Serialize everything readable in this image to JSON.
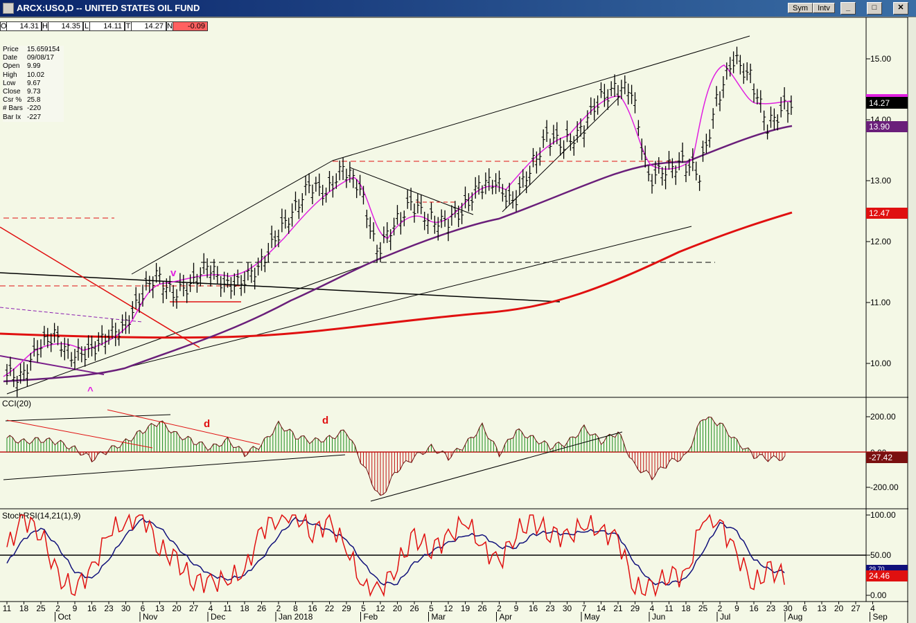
{
  "window": {
    "title": "ARCX:USO,D -- UNITED STATES OIL FUND",
    "sym_button": "Sym",
    "intv_button": "Intv",
    "minimize": "_",
    "restore": "□",
    "close": "✕"
  },
  "ohlc_bar": {
    "open_label": "O",
    "open": "14.31",
    "high_label": "H",
    "high": "14.35",
    "low_label": "L",
    "low": "14.11",
    "close_label": "T",
    "close": "14.27",
    "change_label": "N",
    "change": "-0.09"
  },
  "info_panel": {
    "rows": [
      {
        "key": "Price",
        "value": "15.659154"
      },
      {
        "key": "Date",
        "value": "09/08/17"
      },
      {
        "key": "Open",
        "value": "9.99"
      },
      {
        "key": "High",
        "value": "10.02"
      },
      {
        "key": "Low",
        "value": "9.67"
      },
      {
        "key": "Close",
        "value": "9.73"
      },
      {
        "key": "Csr %",
        "value": "25.8"
      },
      {
        "key": "# Bars",
        "value": "-220"
      },
      {
        "key": "Bar Ix",
        "value": "-227"
      }
    ]
  },
  "colors": {
    "price_bars": "#000000",
    "ma_short": "#e020e0",
    "ma_mid": "#6a1f7a",
    "ma_long": "#e01010",
    "cci_positive": "#1a8a1a",
    "cci_negative": "#c01010",
    "stoch_fast": "#e01010",
    "stoch_slow": "#10107a",
    "background": "#f4f8e6"
  },
  "chart_data": [
    {
      "type": "bar",
      "panel": "price",
      "ohlc": "daily OHLC bars",
      "y_ticks": [
        "15.00",
        "14.00",
        "13.00",
        "12.00",
        "11.00",
        "10.00"
      ],
      "ylim": [
        9.6,
        15.35
      ],
      "dates": [
        "2017-09-11",
        "2017-09-18",
        "2017-09-25",
        "2017-10-02",
        "2017-10-09",
        "2017-10-16",
        "2017-10-23",
        "2017-10-30",
        "2017-11-06",
        "2017-11-13",
        "2017-11-20",
        "2017-11-27",
        "2017-12-04",
        "2017-12-11",
        "2017-12-18",
        "2017-12-26",
        "2018-01-02",
        "2018-01-08",
        "2018-01-16",
        "2018-01-22",
        "2018-01-29",
        "2018-02-05",
        "2018-02-12",
        "2018-02-20",
        "2018-02-26",
        "2018-03-05",
        "2018-03-12",
        "2018-03-19",
        "2018-03-26",
        "2018-04-02",
        "2018-04-09",
        "2018-04-16",
        "2018-04-23",
        "2018-04-30",
        "2018-05-07",
        "2018-05-14",
        "2018-05-21",
        "2018-05-29",
        "2018-06-04",
        "2018-06-11",
        "2018-06-18",
        "2018-06-25",
        "2018-07-02",
        "2018-07-09",
        "2018-07-16",
        "2018-07-23",
        "2018-07-30"
      ],
      "weekly_close": [
        9.8,
        10.2,
        10.5,
        10.1,
        10.2,
        10.4,
        10.6,
        11.0,
        11.5,
        11.1,
        11.3,
        11.6,
        11.3,
        11.3,
        11.6,
        12.0,
        12.5,
        12.9,
        12.8,
        13.2,
        12.9,
        11.8,
        12.3,
        12.6,
        12.4,
        12.3,
        12.5,
        12.9,
        13.0,
        12.6,
        13.2,
        13.7,
        13.6,
        13.8,
        14.3,
        14.5,
        14.5,
        13.0,
        13.2,
        13.3,
        13.1,
        14.3,
        15.0,
        14.7,
        13.9,
        14.2,
        14.27
      ],
      "last_price": "14.27",
      "price_labels": [
        {
          "text": "14.27",
          "color": "#000000"
        },
        {
          "text": "13.90",
          "color": "#6a1f7a"
        },
        {
          "text": "12.47",
          "color": "#e01010"
        }
      ],
      "annotations": [
        "v",
        "^"
      ],
      "title": ""
    },
    {
      "type": "bar",
      "panel": "cci",
      "title": "CCI(20)",
      "y_ticks": [
        "200.00",
        "0.00",
        "-200.00"
      ],
      "ylim": [
        -300,
        300
      ],
      "series": [
        {
          "values": [
            80,
            60,
            70,
            55,
            20,
            -40,
            10,
            60,
            120,
            170,
            100,
            60,
            20,
            70,
            -10,
            40,
            160,
            90,
            60,
            80,
            120,
            -80,
            -260,
            -100,
            -30,
            30,
            -30,
            40,
            150,
            -10,
            120,
            80,
            30,
            50,
            140,
            60,
            110,
            -80,
            -140,
            -60,
            -20,
            200,
            160,
            60,
            -20,
            -40,
            -27.42
          ]
        }
      ],
      "last_value": "-27.42",
      "annotations": [
        "d",
        "d"
      ]
    },
    {
      "type": "line",
      "panel": "stochrsi",
      "title": "StochRSI(14,21(1),9)",
      "y_ticks": [
        "100.00",
        "50.00",
        "0.00"
      ],
      "ylim": [
        -5,
        105
      ],
      "series": [
        {
          "values": [
            60,
            95,
            80,
            20,
            10,
            30,
            80,
            90,
            100,
            60,
            40,
            20,
            15,
            20,
            30,
            80,
            100,
            100,
            80,
            90,
            60,
            10,
            5,
            40,
            70,
            60,
            70,
            95,
            60,
            40,
            80,
            90,
            80,
            70,
            90,
            80,
            70,
            10,
            5,
            30,
            20,
            100,
            90,
            50,
            15,
            30,
            24.46
          ]
        },
        {
          "values": [
            40,
            70,
            85,
            60,
            30,
            20,
            45,
            75,
            95,
            85,
            60,
            40,
            25,
            20,
            25,
            45,
            75,
            95,
            90,
            80,
            70,
            40,
            15,
            15,
            40,
            55,
            65,
            75,
            75,
            60,
            60,
            75,
            80,
            75,
            80,
            80,
            75,
            40,
            15,
            15,
            20,
            55,
            90,
            80,
            45,
            30,
            29.7
          ]
        }
      ],
      "last_value": "24.46",
      "last_value_2": "29.70",
      "reference_line": "50.00"
    }
  ],
  "x_axis": {
    "day_labels": [
      "11",
      "18",
      "25",
      "2",
      "9",
      "16",
      "23",
      "30",
      "6",
      "13",
      "20",
      "27",
      "4",
      "11",
      "18",
      "26",
      "2",
      "8",
      "16",
      "22",
      "29",
      "5",
      "12",
      "20",
      "26",
      "5",
      "12",
      "19",
      "26",
      "2",
      "9",
      "16",
      "23",
      "30",
      "7",
      "14",
      "21",
      "29",
      "4",
      "11",
      "18",
      "25",
      "2",
      "9",
      "16",
      "23",
      "30",
      "6",
      "13",
      "20",
      "27",
      "4"
    ],
    "month_labels": [
      "Oct",
      "Nov",
      "Dec",
      "Jan 2018",
      "Feb",
      "Mar",
      "Apr",
      "May",
      "Jun",
      "Jul",
      "Aug",
      "Sep"
    ]
  }
}
